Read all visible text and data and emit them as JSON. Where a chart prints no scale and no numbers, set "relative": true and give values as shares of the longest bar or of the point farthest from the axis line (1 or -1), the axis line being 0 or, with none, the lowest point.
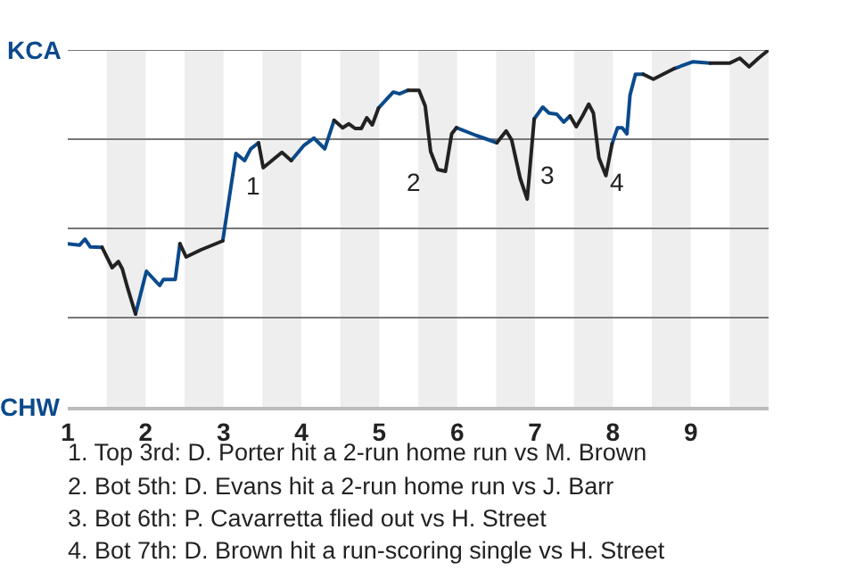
{
  "chart_data": {
    "type": "line",
    "relative": true,
    "xlim": [
      1,
      10
    ],
    "xticks": [
      1,
      2,
      3,
      4,
      5,
      6,
      7,
      8,
      9
    ],
    "marker": "none",
    "line_style": "solid",
    "x": [
      1,
      1.15,
      1.22,
      1.29,
      1.44,
      1.57,
      1.65,
      1.7,
      1.77,
      1.87,
      2.01,
      2.18,
      2.23,
      2.38,
      2.44,
      2.52,
      2.71,
      2.99,
      3.16,
      3.27,
      3.35,
      3.45,
      3.51,
      3.75,
      3.87,
      4.03,
      4.16,
      4.3,
      4.42,
      4.53,
      4.61,
      4.69,
      4.77,
      4.84,
      4.91,
      4.99,
      5.18,
      5.26,
      5.37,
      5.51,
      5.59,
      5.66,
      5.75,
      5.85,
      5.93,
      5.99,
      6.25,
      6.51,
      6.63,
      6.7,
      6.81,
      6.9,
      6.99,
      7.1,
      7.18,
      7.28,
      7.37,
      7.45,
      7.53,
      7.61,
      7.69,
      7.75,
      7.82,
      7.91,
      7.99,
      8.06,
      8.12,
      8.18,
      8.22,
      8.29,
      8.39,
      8.52,
      8.79,
      9.03,
      9.25,
      9.5,
      9.63,
      9.75,
      9.87,
      10
    ],
    "series": [
      {
        "color": "#0b4a8c",
        "values": [
          0.457,
          0.453,
          0.47,
          0.448,
          0.447,
          null,
          null,
          null,
          null,
          0.26,
          0.38,
          0.34,
          0.357,
          0.357,
          0.457,
          null,
          null,
          0.465,
          0.71,
          0.69,
          0.723,
          0.74,
          null,
          null,
          0.69,
          0.732,
          0.753,
          0.723,
          0.803,
          null,
          null,
          null,
          null,
          null,
          null,
          0.837,
          0.882,
          0.877,
          0.887,
          null,
          null,
          null,
          null,
          null,
          null,
          0.782,
          0.76,
          0.74,
          null,
          null,
          null,
          null,
          0.807,
          0.84,
          0.823,
          0.82,
          0.798,
          0.815,
          null,
          null,
          null,
          null,
          null,
          null,
          0.737,
          0.782,
          0.782,
          0.765,
          0.873,
          0.932,
          0.932,
          null,
          0.948,
          0.967,
          0.963,
          null,
          null,
          null,
          null,
          null
        ]
      },
      {
        "color": "#222222",
        "values": [
          null,
          null,
          null,
          null,
          0.447,
          0.39,
          0.407,
          0.387,
          0.332,
          0.26,
          null,
          null,
          null,
          null,
          0.457,
          0.42,
          0.44,
          0.465,
          null,
          null,
          null,
          0.74,
          0.67,
          0.713,
          0.69,
          null,
          null,
          null,
          0.803,
          0.782,
          0.793,
          0.78,
          0.78,
          0.81,
          0.79,
          0.837,
          null,
          null,
          0.887,
          0.887,
          0.843,
          0.715,
          0.665,
          0.66,
          0.765,
          0.782,
          null,
          0.74,
          0.773,
          0.748,
          0.64,
          0.582,
          0.807,
          null,
          null,
          null,
          null,
          0.815,
          0.785,
          0.815,
          0.848,
          0.823,
          0.698,
          0.648,
          0.737,
          null,
          null,
          null,
          null,
          null,
          0.932,
          0.918,
          0.948,
          null,
          0.963,
          0.963,
          0.977,
          0.953,
          0.977,
          1
        ]
      }
    ],
    "ref_lines": [
      {
        "axis": "y",
        "value": 0.25,
        "color": "#777777"
      },
      {
        "axis": "y",
        "value": 0.5,
        "color": "#777777"
      },
      {
        "axis": "y",
        "value": 0.75,
        "color": "#777777"
      },
      {
        "axis": "y",
        "value": 1,
        "color": "#777777"
      }
    ],
    "bands": [
      {
        "axis": "x",
        "from": 1.5,
        "to": 2,
        "color": "#eeeeee"
      },
      {
        "axis": "x",
        "from": 2.5,
        "to": 3,
        "color": "#eeeeee"
      },
      {
        "axis": "x",
        "from": 3.5,
        "to": 4,
        "color": "#eeeeee"
      },
      {
        "axis": "x",
        "from": 4.5,
        "to": 5,
        "color": "#eeeeee"
      },
      {
        "axis": "x",
        "from": 5.5,
        "to": 6,
        "color": "#eeeeee"
      },
      {
        "axis": "x",
        "from": 6.5,
        "to": 7,
        "color": "#eeeeee"
      },
      {
        "axis": "x",
        "from": 7.5,
        "to": 8,
        "color": "#eeeeee"
      },
      {
        "axis": "x",
        "from": 8.5,
        "to": 9,
        "color": "#eeeeee"
      },
      {
        "axis": "x",
        "from": 9.5,
        "to": 10,
        "color": "#eeeeee"
      }
    ],
    "annotations": [
      "KCA",
      "CHW",
      "1",
      "2",
      "3",
      "4",
      "1. Top 3rd: D. Porter hit a 2-run home run vs M. Brown",
      "2. Bot 5th: D. Evans hit a 2-run home run vs J. Barr",
      "3. Bot 6th: P. Cavarretta flied out vs H. Street",
      "4. Bot 7th: D. Brown hit a run-scoring single vs H. Street"
    ]
  }
}
